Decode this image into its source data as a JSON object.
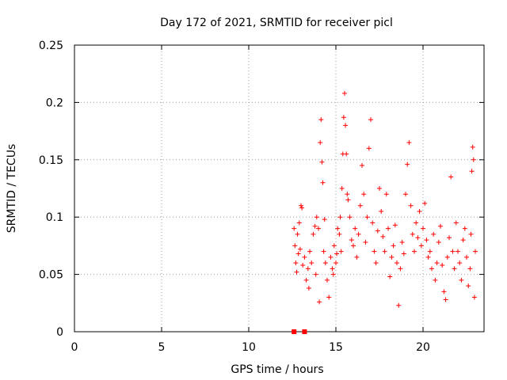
{
  "chart_data": {
    "type": "scatter",
    "title": "Day 172 of 2021, SRMTID for receiver picl",
    "xlabel": "GPS time / hours",
    "ylabel": "SRMTID / TECUs",
    "xlim": [
      0,
      23.5
    ],
    "ylim": [
      0,
      0.25
    ],
    "xticks": [
      0,
      5,
      10,
      15,
      20
    ],
    "yticks": [
      0,
      0.05,
      0.1,
      0.15,
      0.2,
      0.25
    ],
    "ytick_labels": [
      "0",
      "0.05",
      "0.1",
      "0.15",
      "0.2",
      "0.25"
    ],
    "grid": true,
    "marker": "plus",
    "color": "#ff0000",
    "series": [
      {
        "points": [
          [
            12.6,
            0.09
          ],
          [
            12.65,
            0.075
          ],
          [
            12.7,
            0.06
          ],
          [
            12.75,
            0.052
          ],
          [
            12.8,
            0.085
          ],
          [
            12.85,
            0.068
          ],
          [
            12.9,
            0.095
          ],
          [
            12.95,
            0.072
          ],
          [
            13.0,
            0.11
          ],
          [
            13.05,
            0.108
          ],
          [
            13.1,
            0.058
          ],
          [
            13.2,
            0.065
          ],
          [
            13.3,
            0.045
          ],
          [
            13.4,
            0.055
          ],
          [
            13.45,
            0.038
          ],
          [
            13.5,
            0.07
          ],
          [
            13.6,
            0.06
          ],
          [
            13.7,
            0.085
          ],
          [
            13.8,
            0.092
          ],
          [
            13.85,
            0.05
          ],
          [
            13.9,
            0.1
          ],
          [
            14.0,
            0.09
          ],
          [
            14.05,
            0.026
          ],
          [
            14.1,
            0.165
          ],
          [
            14.15,
            0.185
          ],
          [
            14.2,
            0.148
          ],
          [
            14.25,
            0.13
          ],
          [
            14.3,
            0.07
          ],
          [
            14.35,
            0.098
          ],
          [
            14.4,
            0.06
          ],
          [
            14.5,
            0.045
          ],
          [
            14.6,
            0.03
          ],
          [
            14.7,
            0.065
          ],
          [
            14.8,
            0.055
          ],
          [
            14.85,
            0.05
          ],
          [
            14.9,
            0.075
          ],
          [
            15.0,
            0.06
          ],
          [
            15.05,
            0.068
          ],
          [
            15.1,
            0.09
          ],
          [
            15.2,
            0.085
          ],
          [
            15.25,
            0.1
          ],
          [
            15.3,
            0.07
          ],
          [
            15.35,
            0.125
          ],
          [
            15.4,
            0.155
          ],
          [
            15.45,
            0.187
          ],
          [
            15.5,
            0.208
          ],
          [
            15.55,
            0.18
          ],
          [
            15.6,
            0.155
          ],
          [
            15.65,
            0.12
          ],
          [
            15.7,
            0.115
          ],
          [
            15.8,
            0.1
          ],
          [
            15.9,
            0.08
          ],
          [
            16.0,
            0.075
          ],
          [
            16.1,
            0.09
          ],
          [
            16.2,
            0.065
          ],
          [
            16.3,
            0.085
          ],
          [
            16.4,
            0.11
          ],
          [
            16.5,
            0.145
          ],
          [
            16.6,
            0.12
          ],
          [
            16.7,
            0.078
          ],
          [
            16.8,
            0.1
          ],
          [
            16.9,
            0.16
          ],
          [
            17.0,
            0.185
          ],
          [
            17.1,
            0.095
          ],
          [
            17.2,
            0.07
          ],
          [
            17.3,
            0.06
          ],
          [
            17.4,
            0.088
          ],
          [
            17.5,
            0.125
          ],
          [
            17.6,
            0.105
          ],
          [
            17.7,
            0.083
          ],
          [
            17.8,
            0.07
          ],
          [
            17.9,
            0.12
          ],
          [
            18.0,
            0.09
          ],
          [
            18.1,
            0.048
          ],
          [
            18.2,
            0.065
          ],
          [
            18.3,
            0.075
          ],
          [
            18.4,
            0.093
          ],
          [
            18.5,
            0.06
          ],
          [
            18.6,
            0.023
          ],
          [
            18.7,
            0.055
          ],
          [
            18.8,
            0.078
          ],
          [
            18.9,
            0.068
          ],
          [
            19.0,
            0.12
          ],
          [
            19.1,
            0.146
          ],
          [
            19.2,
            0.165
          ],
          [
            19.3,
            0.11
          ],
          [
            19.4,
            0.085
          ],
          [
            19.5,
            0.07
          ],
          [
            19.6,
            0.095
          ],
          [
            19.7,
            0.082
          ],
          [
            19.8,
            0.105
          ],
          [
            19.9,
            0.075
          ],
          [
            20.0,
            0.09
          ],
          [
            20.1,
            0.112
          ],
          [
            20.2,
            0.08
          ],
          [
            20.3,
            0.065
          ],
          [
            20.4,
            0.07
          ],
          [
            20.5,
            0.055
          ],
          [
            20.6,
            0.085
          ],
          [
            20.7,
            0.045
          ],
          [
            20.8,
            0.06
          ],
          [
            20.9,
            0.078
          ],
          [
            21.0,
            0.092
          ],
          [
            21.1,
            0.058
          ],
          [
            21.2,
            0.035
          ],
          [
            21.3,
            0.028
          ],
          [
            21.4,
            0.065
          ],
          [
            21.5,
            0.082
          ],
          [
            21.6,
            0.135
          ],
          [
            21.7,
            0.07
          ],
          [
            21.8,
            0.055
          ],
          [
            21.9,
            0.095
          ],
          [
            22.0,
            0.07
          ],
          [
            22.1,
            0.06
          ],
          [
            22.2,
            0.045
          ],
          [
            22.3,
            0.08
          ],
          [
            22.4,
            0.09
          ],
          [
            22.5,
            0.065
          ],
          [
            22.6,
            0.04
          ],
          [
            22.7,
            0.055
          ],
          [
            22.75,
            0.085
          ],
          [
            22.8,
            0.14
          ],
          [
            22.85,
            0.161
          ],
          [
            22.9,
            0.15
          ],
          [
            22.95,
            0.03
          ],
          [
            23.0,
            0.07
          ]
        ]
      }
    ],
    "zero_markers": [
      12.6,
      13.2
    ]
  }
}
